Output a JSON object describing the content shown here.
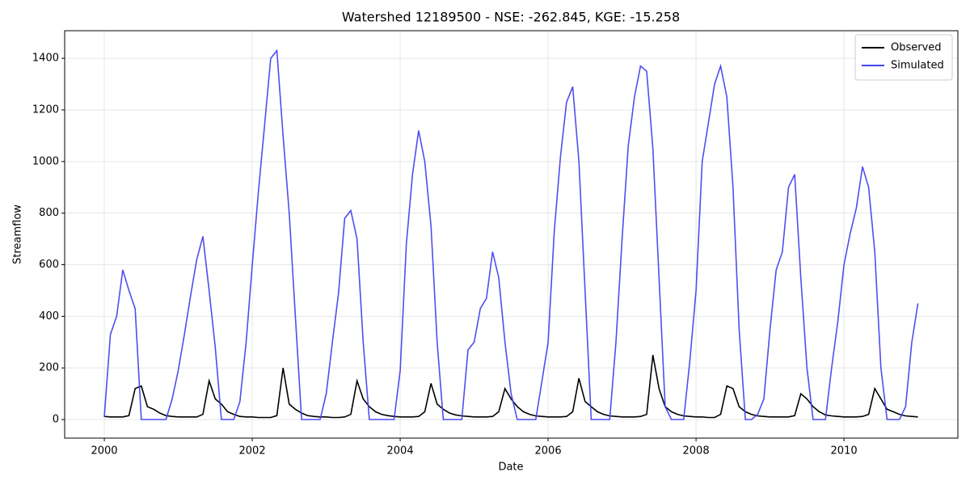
{
  "chart_data": {
    "type": "line",
    "title": "Watershed 12189500 - NSE: -262.845, KGE: -15.258",
    "x_label": "Date",
    "y_label": "Streamflow",
    "x": [
      2000,
      2000.083,
      2000.167,
      2000.25,
      2000.333,
      2000.417,
      2000.5,
      2000.583,
      2000.667,
      2000.75,
      2000.833,
      2000.917,
      2001,
      2001.083,
      2001.167,
      2001.25,
      2001.333,
      2001.417,
      2001.5,
      2001.583,
      2001.667,
      2001.75,
      2001.833,
      2001.917,
      2002,
      2002.083,
      2002.167,
      2002.25,
      2002.333,
      2002.417,
      2002.5,
      2002.583,
      2002.667,
      2002.75,
      2002.833,
      2002.917,
      2003,
      2003.083,
      2003.167,
      2003.25,
      2003.333,
      2003.417,
      2003.5,
      2003.583,
      2003.667,
      2003.75,
      2003.833,
      2003.917,
      2004,
      2004.083,
      2004.167,
      2004.25,
      2004.333,
      2004.417,
      2004.5,
      2004.583,
      2004.667,
      2004.75,
      2004.833,
      2004.917,
      2005,
      2005.083,
      2005.167,
      2005.25,
      2005.333,
      2005.417,
      2005.5,
      2005.583,
      2005.667,
      2005.75,
      2005.833,
      2005.917,
      2006,
      2006.083,
      2006.167,
      2006.25,
      2006.333,
      2006.417,
      2006.5,
      2006.583,
      2006.667,
      2006.75,
      2006.833,
      2006.917,
      2007,
      2007.083,
      2007.167,
      2007.25,
      2007.333,
      2007.417,
      2007.5,
      2007.583,
      2007.667,
      2007.75,
      2007.833,
      2007.917,
      2008,
      2008.083,
      2008.167,
      2008.25,
      2008.333,
      2008.417,
      2008.5,
      2008.583,
      2008.667,
      2008.75,
      2008.833,
      2008.917,
      2009,
      2009.083,
      2009.167,
      2009.25,
      2009.333,
      2009.417,
      2009.5,
      2009.583,
      2009.667,
      2009.75,
      2009.833,
      2009.917,
      2010,
      2010.083,
      2010.167,
      2010.25,
      2010.333,
      2010.417,
      2010.5,
      2010.583,
      2010.667,
      2010.75,
      2010.833,
      2010.917,
      2011
    ],
    "series": [
      {
        "name": "Observed",
        "color": "#000000",
        "values": [
          12,
          10,
          10,
          10,
          15,
          120,
          130,
          50,
          40,
          25,
          15,
          12,
          10,
          10,
          10,
          10,
          20,
          150,
          80,
          60,
          30,
          20,
          12,
          10,
          10,
          8,
          8,
          8,
          15,
          200,
          60,
          40,
          25,
          15,
          12,
          10,
          10,
          8,
          8,
          10,
          20,
          150,
          80,
          50,
          30,
          20,
          15,
          12,
          10,
          10,
          10,
          12,
          30,
          140,
          60,
          40,
          25,
          18,
          14,
          12,
          10,
          10,
          10,
          12,
          30,
          120,
          80,
          50,
          30,
          20,
          14,
          12,
          10,
          10,
          10,
          12,
          30,
          160,
          70,
          50,
          30,
          20,
          14,
          12,
          10,
          10,
          10,
          12,
          20,
          250,
          120,
          50,
          30,
          20,
          14,
          12,
          10,
          10,
          8,
          8,
          20,
          130,
          120,
          50,
          30,
          20,
          14,
          12,
          10,
          10,
          10,
          10,
          15,
          100,
          80,
          50,
          30,
          18,
          14,
          12,
          10,
          10,
          10,
          12,
          20,
          120,
          80,
          40,
          30,
          20,
          14,
          12,
          10
        ]
      },
      {
        "name": "Simulated",
        "color": "#4444ee",
        "values": [
          10,
          330,
          400,
          580,
          500,
          430,
          0,
          0,
          0,
          0,
          0,
          80,
          190,
          330,
          480,
          620,
          710,
          500,
          280,
          0,
          0,
          0,
          70,
          300,
          600,
          880,
          1140,
          1400,
          1430,
          1100,
          800,
          400,
          0,
          0,
          0,
          0,
          100,
          300,
          490,
          780,
          810,
          700,
          300,
          0,
          0,
          0,
          0,
          0,
          190,
          680,
          950,
          1120,
          1000,
          750,
          300,
          0,
          0,
          0,
          0,
          270,
          300,
          430,
          470,
          650,
          550,
          300,
          100,
          0,
          0,
          0,
          0,
          150,
          300,
          730,
          1020,
          1230,
          1290,
          1000,
          500,
          0,
          0,
          0,
          0,
          300,
          700,
          1060,
          1250,
          1370,
          1350,
          1050,
          550,
          50,
          0,
          0,
          0,
          230,
          500,
          1000,
          1150,
          1300,
          1370,
          1250,
          900,
          350,
          0,
          0,
          20,
          80,
          350,
          580,
          650,
          900,
          950,
          550,
          200,
          0,
          0,
          0,
          200,
          380,
          600,
          720,
          820,
          980,
          900,
          650,
          200,
          0,
          0,
          0,
          50,
          300,
          450
        ]
      }
    ],
    "xlim": [
      1999.464,
      2011.54
    ],
    "xticks": [
      2000,
      2002,
      2004,
      2006,
      2008,
      2010
    ],
    "ylim": [
      -72,
      1507
    ],
    "yticks": [
      0,
      200,
      400,
      600,
      800,
      1000,
      1200,
      1400
    ],
    "grid": true,
    "legend": "upper right"
  }
}
